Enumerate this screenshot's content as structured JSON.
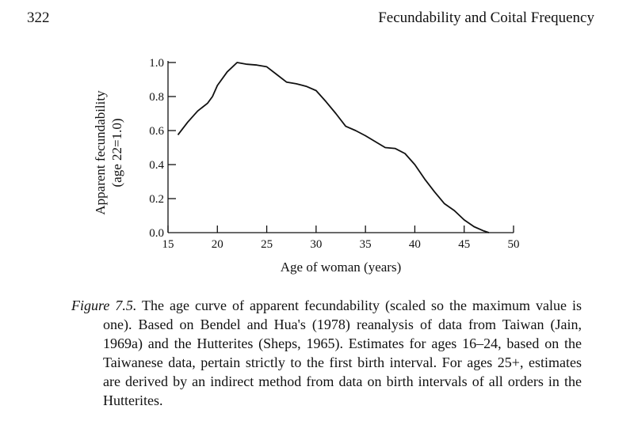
{
  "header": {
    "page_number": "322",
    "running_head": "Fecundability and Coital Frequency"
  },
  "chart_data": {
    "type": "line",
    "title": "",
    "xlabel": "Age of woman (years)",
    "ylabel": "Apparent fecundability",
    "ylabel_sub": "(age 22=1.0)",
    "xlim": [
      15,
      50
    ],
    "ylim": [
      0,
      1.0
    ],
    "x_ticks": [
      15,
      20,
      25,
      30,
      35,
      40,
      45,
      50
    ],
    "x_tick_labels": [
      "15",
      "20",
      "25",
      "30",
      "35",
      "40",
      "45",
      "50"
    ],
    "y_ticks": [
      0,
      0.2,
      0.4,
      0.6,
      0.8,
      1.0
    ],
    "y_tick_labels": [
      "0.0",
      "0.2",
      "0.4",
      "0.6",
      "0.8",
      "1.0"
    ],
    "grid": false,
    "series": [
      {
        "x": [
          16,
          17,
          18,
          19,
          19.5,
          20,
          21,
          22,
          23,
          24,
          25,
          26,
          27,
          28,
          29,
          30,
          31,
          32,
          33,
          34,
          35,
          36,
          37,
          38,
          39,
          40,
          41,
          42,
          43,
          44,
          45,
          46,
          47,
          47.5
        ],
        "y": [
          0.575,
          0.65,
          0.715,
          0.76,
          0.8,
          0.865,
          0.945,
          1.0,
          0.99,
          0.985,
          0.975,
          0.93,
          0.885,
          0.875,
          0.86,
          0.835,
          0.77,
          0.7,
          0.625,
          0.6,
          0.57,
          0.535,
          0.5,
          0.495,
          0.465,
          0.4,
          0.315,
          0.24,
          0.17,
          0.13,
          0.075,
          0.035,
          0.01,
          0.0
        ]
      }
    ]
  },
  "caption": {
    "label": "Figure 7.5.",
    "text": "The age curve of apparent fecundability (scaled so the maximum value is one). Based on Bendel and Hua's (1978) reanalysis of data from Taiwan (Jain, 1969a) and the Hutterites (Sheps, 1965). Estimates for ages 16–24, based on the Taiwanese data, pertain strictly to the first birth interval. For ages 25+, estimates are derived by an indirect method from data on birth intervals of all orders in the Hutterites."
  }
}
